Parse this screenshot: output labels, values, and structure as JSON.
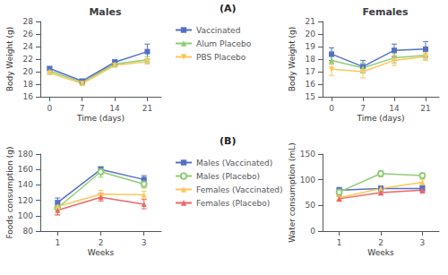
{
  "chart_data": [
    {
      "type": "line",
      "title": "Males",
      "annotation": "(A)",
      "legend": "right",
      "grid": false,
      "x_label": "Time (days)",
      "y_label": "Body Weight (g)",
      "x": [
        0,
        7,
        14,
        21
      ],
      "xlim": [
        -2,
        24
      ],
      "xticks": [
        0,
        7,
        14,
        21
      ],
      "ylim": [
        16,
        28
      ],
      "yticks": [
        16,
        18,
        20,
        22,
        24,
        26,
        28
      ],
      "series": [
        {
          "name": "Vaccinated",
          "color": "#5470c6",
          "marker": "square",
          "values": [
            20.5,
            18.5,
            21.5,
            23.2
          ],
          "errors": [
            0.3,
            0.3,
            0.4,
            1.2
          ]
        },
        {
          "name": "Alum Placebo",
          "color": "#91cc75",
          "marker": "triangle",
          "values": [
            20.1,
            18.3,
            21.2,
            21.9
          ],
          "errors": [
            0.3,
            0.3,
            0.4,
            0.5
          ]
        },
        {
          "name": "PBS Placebo",
          "color": "#fac858",
          "marker": "triangle_down",
          "values": [
            19.8,
            18.1,
            21.0,
            21.6
          ],
          "errors": [
            0.3,
            0.3,
            0.3,
            0.4
          ]
        }
      ]
    },
    {
      "type": "line",
      "title": "Females",
      "grid": false,
      "x_label": "Time (days)",
      "y_label": "Body Weight (g)",
      "x": [
        0,
        7,
        14,
        21
      ],
      "xlim": [
        -2,
        24
      ],
      "xticks": [
        0,
        7,
        14,
        21
      ],
      "ylim": [
        15,
        21
      ],
      "yticks": [
        15,
        16,
        17,
        18,
        19,
        20,
        21
      ],
      "series": [
        {
          "name": "Vaccinated",
          "color": "#5470c6",
          "marker": "square",
          "values": [
            18.4,
            17.4,
            18.7,
            18.8
          ],
          "errors": [
            0.5,
            0.5,
            0.5,
            0.6
          ]
        },
        {
          "name": "Alum Placebo",
          "color": "#91cc75",
          "marker": "triangle",
          "values": [
            17.9,
            17.3,
            18.1,
            18.3
          ],
          "errors": [
            0.3,
            0.4,
            0.4,
            0.3
          ]
        },
        {
          "name": "PBS Placebo",
          "color": "#fac858",
          "marker": "triangle_down",
          "values": [
            17.2,
            17.0,
            17.9,
            18.2
          ],
          "errors": [
            0.5,
            0.5,
            0.4,
            0.3
          ]
        }
      ]
    },
    {
      "type": "line",
      "annotation": "(B)",
      "legend": "right",
      "grid": false,
      "x_label": "Weeks",
      "y_label": "Foods consumption (g)",
      "x": [
        1,
        2,
        3
      ],
      "xlim": [
        0.6,
        3.4
      ],
      "xticks": [
        1,
        2,
        3
      ],
      "ylim": [
        80,
        180
      ],
      "yticks": [
        80,
        100,
        120,
        140,
        160,
        180
      ],
      "series": [
        {
          "name": "Males (Vaccinated)",
          "color": "#5470c6",
          "marker": "square",
          "values": [
            117,
            160,
            147
          ],
          "errors": [
            6,
            3,
            5
          ]
        },
        {
          "name": "Males (Placebo)",
          "color": "#91cc75",
          "marker": "circle_open",
          "values": [
            110,
            157,
            141
          ],
          "errors": [
            9,
            7,
            5
          ]
        },
        {
          "name": "Females (Vaccinated)",
          "color": "#fac858",
          "marker": "triangle",
          "values": [
            112,
            128,
            127
          ],
          "errors": [
            5,
            5,
            5
          ]
        },
        {
          "name": "Females (Placebo)",
          "color": "#ee6666",
          "marker": "triangle",
          "values": [
            107,
            124,
            115
          ],
          "errors": [
            6,
            5,
            6
          ]
        }
      ]
    },
    {
      "type": "line",
      "grid": false,
      "x_label": "Weeks",
      "y_label": "Water consumption (mL)",
      "x": [
        1,
        2,
        3
      ],
      "xlim": [
        0.6,
        3.4
      ],
      "xticks": [
        1,
        2,
        3
      ],
      "ylim": [
        0,
        150
      ],
      "yticks": [
        0,
        50,
        100,
        150
      ],
      "series": [
        {
          "name": "Males (Vaccinated)",
          "color": "#5470c6",
          "marker": "square",
          "values": [
            80,
            83,
            83
          ],
          "errors": [
            5,
            5,
            5
          ]
        },
        {
          "name": "Males (Placebo)",
          "color": "#91cc75",
          "marker": "circle_open",
          "values": [
            76,
            112,
            108
          ],
          "errors": [
            6,
            6,
            5
          ]
        },
        {
          "name": "Females (Vaccinated)",
          "color": "#fac858",
          "marker": "triangle",
          "values": [
            65,
            83,
            95
          ],
          "errors": [
            4,
            4,
            5
          ]
        },
        {
          "name": "Females (Placebo)",
          "color": "#ee6666",
          "marker": "triangle",
          "values": [
            63,
            75,
            80
          ],
          "errors": [
            5,
            5,
            6
          ]
        }
      ]
    }
  ]
}
